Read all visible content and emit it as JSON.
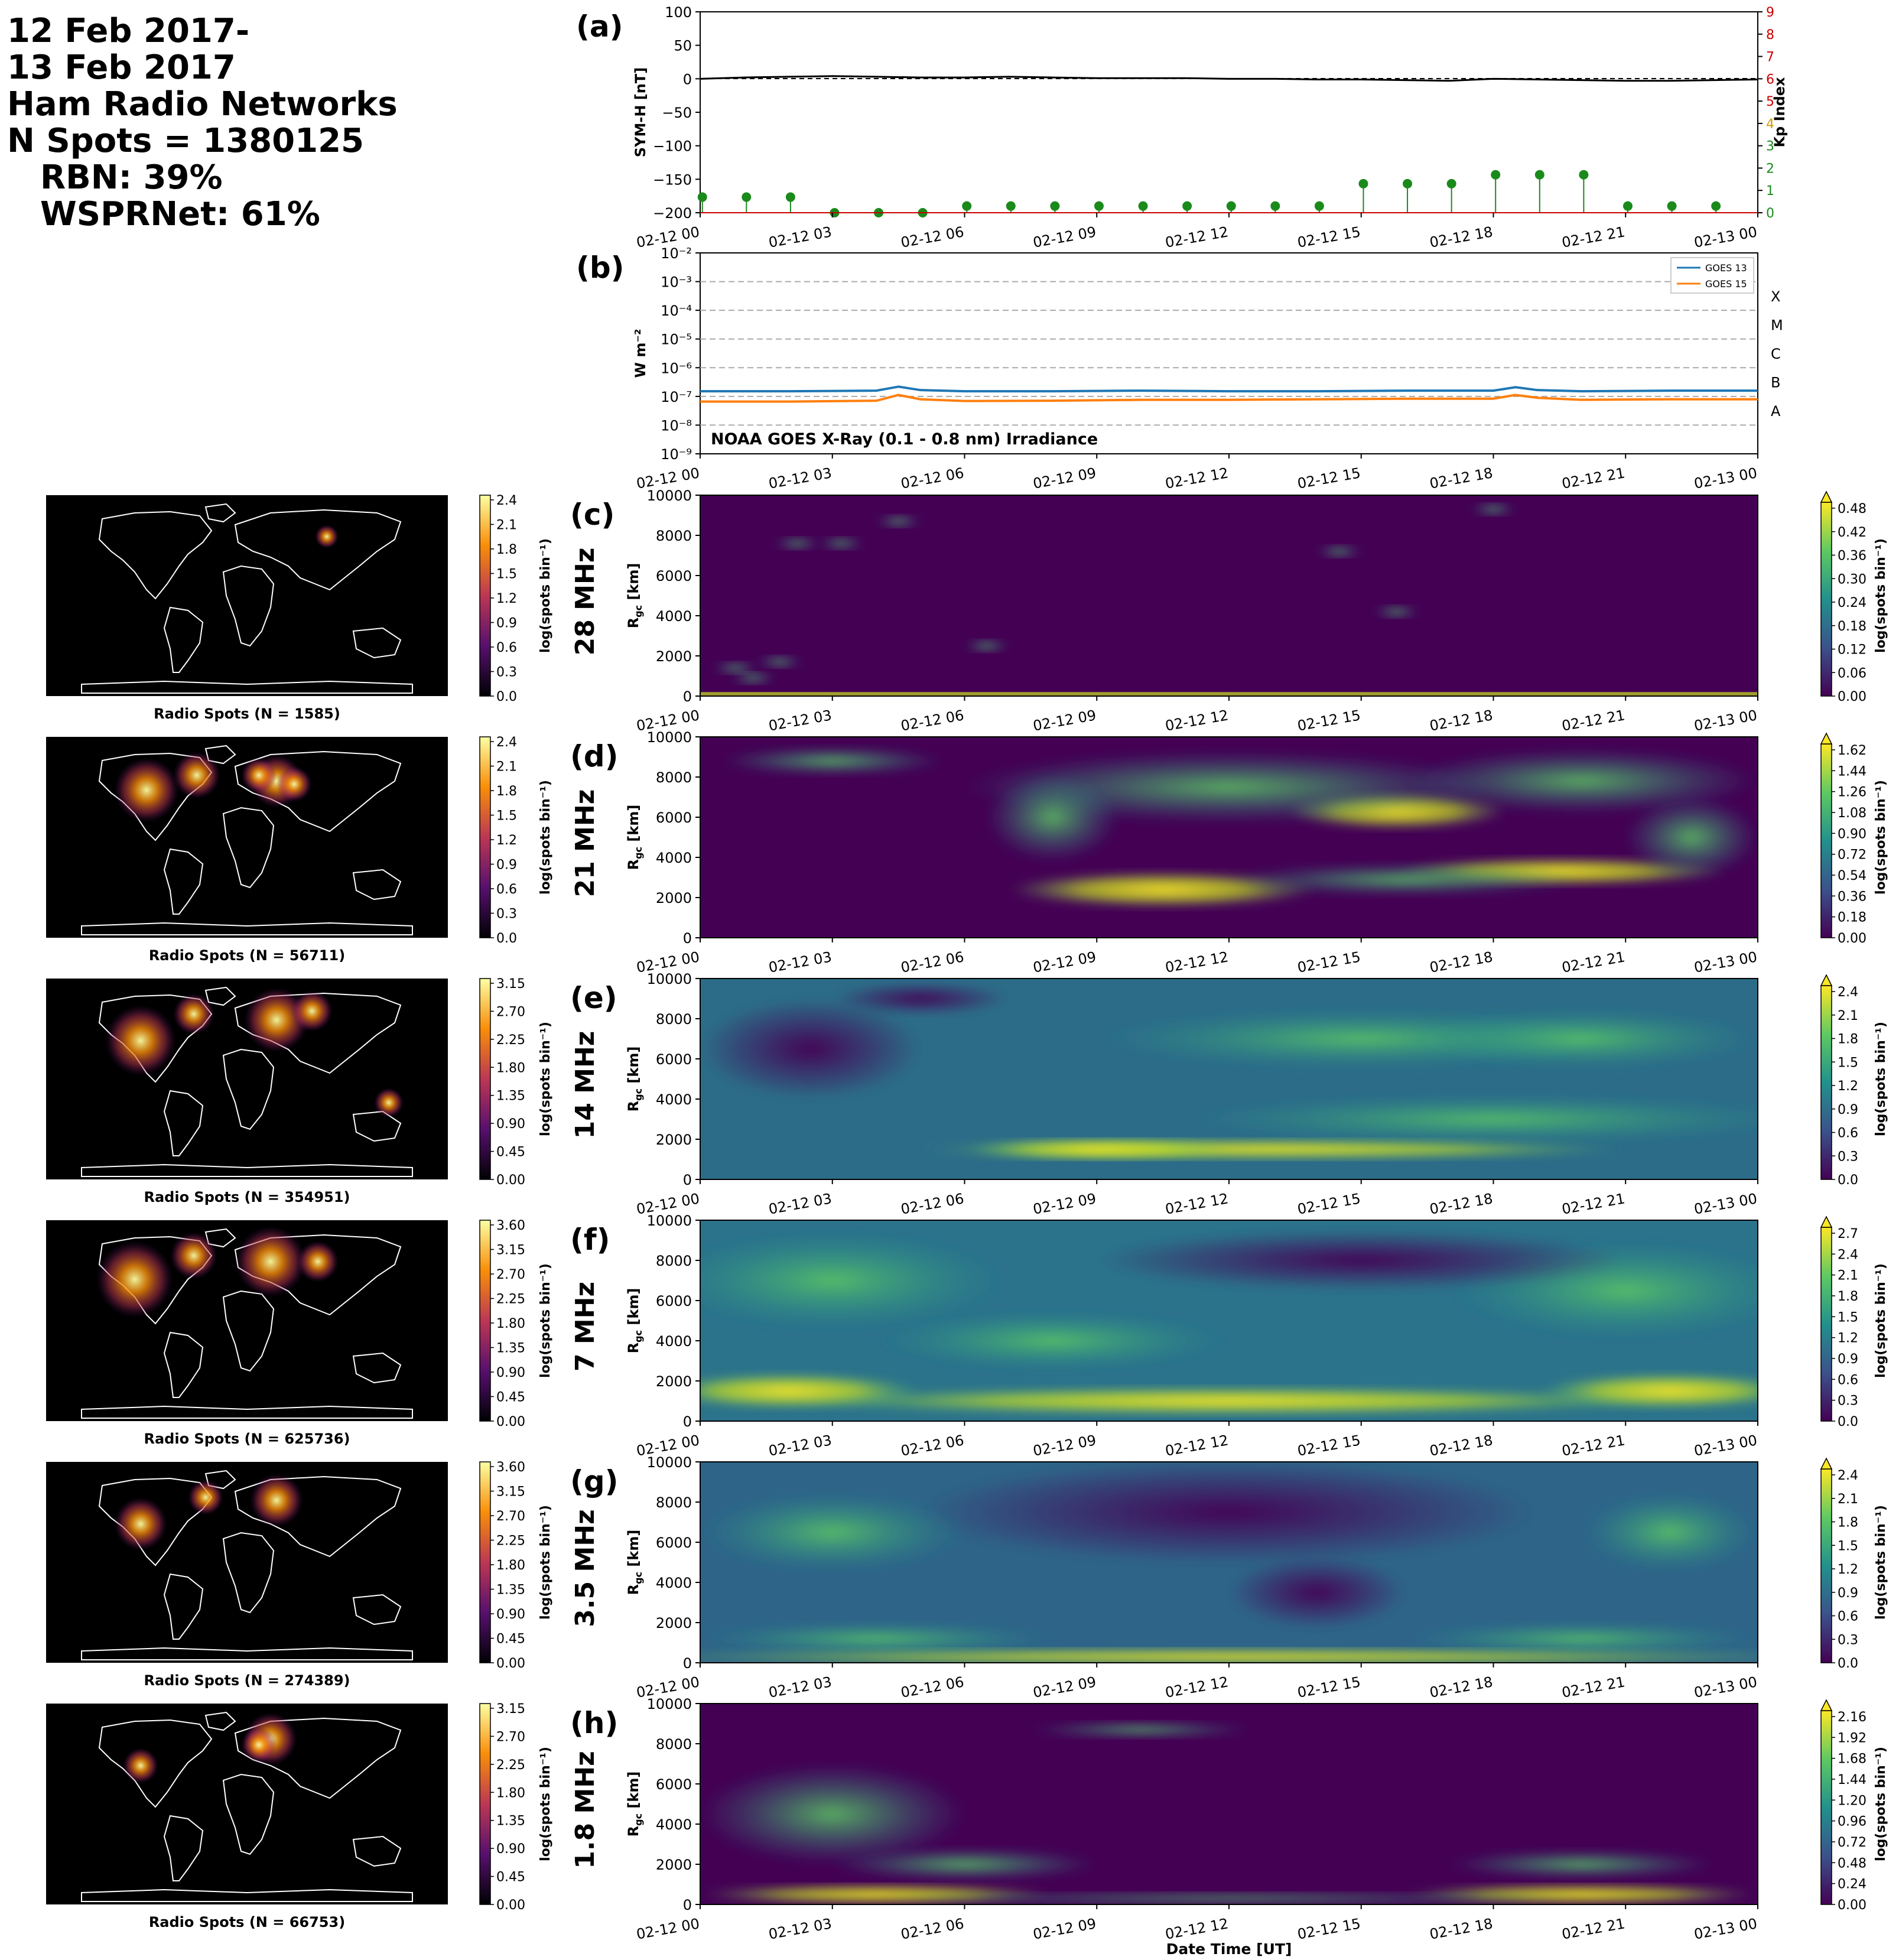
{
  "header": {
    "line1": "12 Feb 2017-",
    "line2": "13 Feb 2017",
    "line3": "Ham Radio Networks",
    "line4": "N Spots = 1380125",
    "line5": "RBN: 39%",
    "line6": "WSPRNet: 61%"
  },
  "colors": {
    "symh": "#000000",
    "kp": "#1a8a1a",
    "goes13": "#1f77b4",
    "goes15": "#ff7f0e",
    "kp_tick_low": "#1a8a1a",
    "kp_tick_mid": "#d49b00",
    "kp_tick_high": "#cc0000"
  },
  "time_ticks": [
    "02-12 00",
    "02-12 03",
    "02-12 06",
    "02-12 09",
    "02-12 12",
    "02-12 15",
    "02-12 18",
    "02-12 21",
    "02-13 00"
  ],
  "xlabel": "Date Time [UT]",
  "chart_data": [
    {
      "panel": "(a)",
      "type": "line",
      "ylabel": "SYM-H [nT]",
      "ylim": [
        -200,
        100
      ],
      "yticks": [
        "100",
        "50",
        "0",
        "−50",
        "−100",
        "−150",
        "−200"
      ],
      "series": [
        {
          "x_hours": [
            0,
            1,
            2,
            3,
            4,
            5,
            6,
            7,
            8,
            9,
            10,
            11,
            12,
            13,
            14,
            15,
            16,
            17,
            18,
            19,
            20,
            21,
            22,
            23,
            24
          ],
          "values": [
            0,
            2,
            3,
            4,
            3,
            2,
            2,
            3,
            2,
            1,
            1,
            1,
            0,
            0,
            -1,
            -1,
            -2,
            -3,
            0,
            -1,
            -2,
            -3,
            -3,
            -2,
            -1
          ]
        }
      ],
      "y2label": "Kp Index",
      "y2lim": [
        0,
        9
      ],
      "y2ticks": [
        "0",
        "1",
        "2",
        "3",
        "4",
        "5",
        "6",
        "7",
        "8",
        "9"
      ],
      "kp": {
        "x_hours": [
          0,
          1,
          2,
          3,
          4,
          5,
          6,
          7,
          8,
          9,
          10,
          11,
          12,
          13,
          14,
          15,
          16,
          17,
          18,
          19,
          20,
          21,
          22,
          23
        ],
        "values": [
          0.7,
          0.7,
          0.7,
          0,
          0,
          0,
          0.3,
          0.3,
          0.3,
          0.3,
          0.3,
          0.3,
          0.3,
          0.3,
          0.3,
          1.3,
          1.3,
          1.3,
          1.7,
          1.7,
          1.7,
          0.3,
          0.3,
          0.3
        ]
      }
    },
    {
      "panel": "(b)",
      "type": "line",
      "ylabel": "W m⁻²",
      "yscale": "log",
      "ylim": [
        1e-09,
        0.01
      ],
      "yticks": [
        "10⁻²",
        "10⁻³",
        "10⁻⁴",
        "10⁻⁵",
        "10⁻⁶",
        "10⁻⁷",
        "10⁻⁸",
        "10⁻⁹"
      ],
      "flare_classes": [
        "X",
        "M",
        "C",
        "B",
        "A"
      ],
      "legend_placement": "top-right",
      "annotation": "NOAA GOES X-Ray (0.1 - 0.8 nm) Irradiance",
      "series": [
        {
          "name": "GOES 13",
          "x_hours": [
            0,
            2,
            4,
            4.5,
            5,
            6,
            8,
            10,
            12,
            14,
            16,
            18,
            18.5,
            19,
            20,
            22,
            24
          ],
          "log10": [
            -6.82,
            -6.82,
            -6.8,
            -6.66,
            -6.78,
            -6.82,
            -6.82,
            -6.8,
            -6.82,
            -6.82,
            -6.8,
            -6.8,
            -6.68,
            -6.78,
            -6.82,
            -6.8,
            -6.8
          ]
        },
        {
          "name": "GOES 15",
          "x_hours": [
            0,
            2,
            4,
            4.5,
            5,
            6,
            8,
            10,
            12,
            14,
            16,
            18,
            18.5,
            19,
            20,
            22,
            24
          ],
          "log10": [
            -7.18,
            -7.18,
            -7.15,
            -6.95,
            -7.1,
            -7.16,
            -7.15,
            -7.12,
            -7.12,
            -7.1,
            -7.08,
            -7.08,
            -6.95,
            -7.05,
            -7.12,
            -7.1,
            -7.1
          ]
        }
      ]
    }
  ],
  "bands": [
    {
      "panel": "(c)",
      "band": "28 MHz",
      "map_caption": "Radio Spots (N = 1585)",
      "map_cbar_ticks": [
        "2.4",
        "2.1",
        "1.8",
        "1.5",
        "1.2",
        "0.9",
        "0.6",
        "0.3",
        "0.0"
      ],
      "rti_cbar_ticks": [
        "0.48",
        "0.42",
        "0.36",
        "0.30",
        "0.24",
        "0.18",
        "0.12",
        "0.06",
        "0.00"
      ]
    },
    {
      "panel": "(d)",
      "band": "21 MHz",
      "map_caption": "Radio Spots (N = 56711)",
      "map_cbar_ticks": [
        "2.4",
        "2.1",
        "1.8",
        "1.5",
        "1.2",
        "0.9",
        "0.6",
        "0.3",
        "0.0"
      ],
      "rti_cbar_ticks": [
        "1.62",
        "1.44",
        "1.26",
        "1.08",
        "0.90",
        "0.72",
        "0.54",
        "0.36",
        "0.18",
        "0.00"
      ]
    },
    {
      "panel": "(e)",
      "band": "14 MHz",
      "map_caption": "Radio Spots (N = 354951)",
      "map_cbar_ticks": [
        "3.15",
        "2.70",
        "2.25",
        "1.80",
        "1.35",
        "0.90",
        "0.45",
        "0.00"
      ],
      "rti_cbar_ticks": [
        "2.4",
        "2.1",
        "1.8",
        "1.5",
        "1.2",
        "0.9",
        "0.6",
        "0.3",
        "0.0"
      ]
    },
    {
      "panel": "(f)",
      "band": "7 MHz",
      "map_caption": "Radio Spots (N = 625736)",
      "map_cbar_ticks": [
        "3.60",
        "3.15",
        "2.70",
        "2.25",
        "1.80",
        "1.35",
        "0.90",
        "0.45",
        "0.00"
      ],
      "rti_cbar_ticks": [
        "2.7",
        "2.4",
        "2.1",
        "1.8",
        "1.5",
        "1.2",
        "0.9",
        "0.6",
        "0.3",
        "0.0"
      ]
    },
    {
      "panel": "(g)",
      "band": "3.5 MHz",
      "map_caption": "Radio Spots (N = 274389)",
      "map_cbar_ticks": [
        "3.60",
        "3.15",
        "2.70",
        "2.25",
        "1.80",
        "1.35",
        "0.90",
        "0.45",
        "0.00"
      ],
      "rti_cbar_ticks": [
        "2.4",
        "2.1",
        "1.8",
        "1.5",
        "1.2",
        "0.9",
        "0.6",
        "0.3",
        "0.0"
      ]
    },
    {
      "panel": "(h)",
      "band": "1.8 MHz",
      "map_caption": "Radio Spots (N = 66753)",
      "map_cbar_ticks": [
        "3.15",
        "2.70",
        "2.25",
        "1.80",
        "1.35",
        "0.90",
        "0.45",
        "0.00"
      ],
      "rti_cbar_ticks": [
        "2.16",
        "1.92",
        "1.68",
        "1.44",
        "1.20",
        "0.96",
        "0.72",
        "0.48",
        "0.24",
        "0.00"
      ]
    }
  ],
  "rti_ylabel_main": "R",
  "rti_ylabel_sub": "gc",
  "rti_ylabel_unit": " [km]",
  "rti_yticks": [
    "10000",
    "8000",
    "6000",
    "4000",
    "2000",
    "0"
  ],
  "cbar_label": "log(spots bin⁻¹)"
}
